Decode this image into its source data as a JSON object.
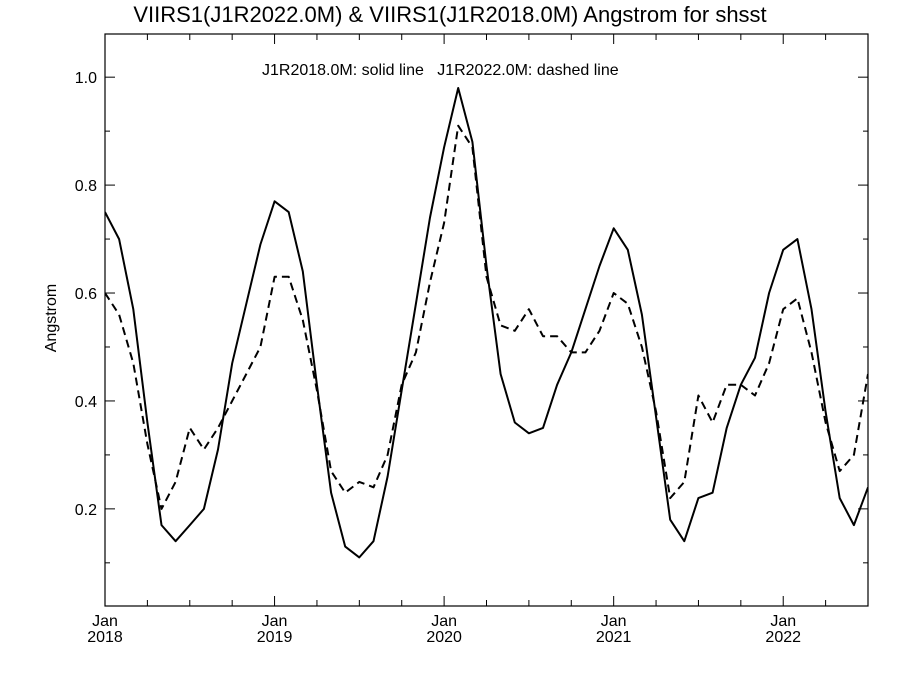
{
  "chart_data": {
    "type": "line",
    "title": "VIIRS1(J1R2022.0M) & VIIRS1(J1R2018.0M)  Angstrom for shsst",
    "legend_text": "J1R2018.0M: solid line   J1R2022.0M: dashed line",
    "xlabel": "",
    "ylabel": "Angstrom",
    "ylim": [
      0.02,
      1.08
    ],
    "xlim": [
      "2018-01",
      "2022-07"
    ],
    "yticks": [
      0.2,
      0.4,
      0.6,
      0.8,
      1.0
    ],
    "ytick_labels": [
      "0.2",
      "0.4",
      "0.6",
      "0.8",
      "1.0"
    ],
    "xtick_labels": [
      {
        "month": "Jan",
        "year": "2018",
        "at": "2018-01"
      },
      {
        "month": "Jan",
        "year": "2019",
        "at": "2019-01"
      },
      {
        "month": "Jan",
        "year": "2020",
        "at": "2020-01"
      },
      {
        "month": "Jan",
        "year": "2021",
        "at": "2021-01"
      },
      {
        "month": "Jan",
        "year": "2022",
        "at": "2022-01"
      }
    ],
    "grid": false,
    "x": [
      "2018-01",
      "2018-02",
      "2018-03",
      "2018-04",
      "2018-05",
      "2018-06",
      "2018-07",
      "2018-08",
      "2018-09",
      "2018-10",
      "2018-11",
      "2018-12",
      "2019-01",
      "2019-02",
      "2019-03",
      "2019-04",
      "2019-05",
      "2019-06",
      "2019-07",
      "2019-08",
      "2019-09",
      "2019-10",
      "2019-11",
      "2019-12",
      "2020-01",
      "2020-02",
      "2020-03",
      "2020-04",
      "2020-05",
      "2020-06",
      "2020-07",
      "2020-08",
      "2020-09",
      "2020-10",
      "2020-11",
      "2020-12",
      "2021-01",
      "2021-02",
      "2021-03",
      "2021-04",
      "2021-05",
      "2021-06",
      "2021-07",
      "2021-08",
      "2021-09",
      "2021-10",
      "2021-11",
      "2021-12",
      "2022-01",
      "2022-02",
      "2022-03",
      "2022-04",
      "2022-05",
      "2022-06",
      "2022-07"
    ],
    "series": [
      {
        "name": "J1R2018.0M",
        "style": "solid",
        "color": "#000000",
        "values": [
          0.75,
          0.7,
          0.57,
          0.36,
          0.17,
          0.14,
          0.17,
          0.2,
          0.31,
          0.47,
          0.58,
          0.69,
          0.77,
          0.75,
          0.64,
          0.43,
          0.23,
          0.13,
          0.11,
          0.14,
          0.26,
          0.42,
          0.58,
          0.74,
          0.87,
          0.98,
          0.88,
          0.65,
          0.45,
          0.36,
          0.34,
          0.35,
          0.43,
          0.49,
          0.57,
          0.65,
          0.72,
          0.68,
          0.56,
          0.37,
          0.18,
          0.14,
          0.22,
          0.23,
          0.35,
          0.43,
          0.48,
          0.6,
          0.68,
          0.7,
          0.57,
          0.38,
          0.22,
          0.17,
          0.24
        ]
      },
      {
        "name": "J1R2022.0M",
        "style": "dashed",
        "color": "#000000",
        "values": [
          0.6,
          0.56,
          0.47,
          0.32,
          0.2,
          0.25,
          0.35,
          0.31,
          0.35,
          0.4,
          0.45,
          0.5,
          0.63,
          0.63,
          0.55,
          0.42,
          0.27,
          0.23,
          0.25,
          0.24,
          0.3,
          0.43,
          0.49,
          0.62,
          0.73,
          0.91,
          0.87,
          0.63,
          0.54,
          0.53,
          0.57,
          0.52,
          0.52,
          0.49,
          0.49,
          0.53,
          0.6,
          0.58,
          0.5,
          0.38,
          0.22,
          0.25,
          0.41,
          0.36,
          0.43,
          0.43,
          0.41,
          0.47,
          0.57,
          0.59,
          0.49,
          0.36,
          0.27,
          0.3,
          0.45
        ]
      }
    ]
  }
}
